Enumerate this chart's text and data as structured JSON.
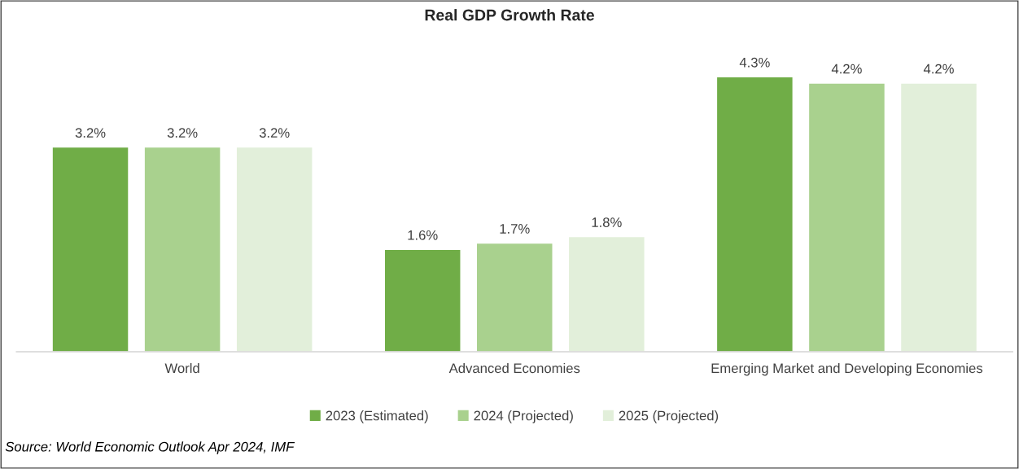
{
  "chart_data": {
    "type": "bar",
    "title": "Real GDP Growth Rate",
    "categories": [
      "World",
      "Advanced Economies",
      "Emerging Market and Developing Economies"
    ],
    "series": [
      {
        "name": "2023 (Estimated)",
        "color": "#70ad47",
        "values": [
          3.2,
          1.6,
          4.3
        ],
        "value_labels": [
          "3.2%",
          "1.6%",
          "4.3%"
        ]
      },
      {
        "name": "2024 (Projected)",
        "color": "#a9d18e",
        "values": [
          3.2,
          1.7,
          4.2
        ],
        "value_labels": [
          "3.2%",
          "1.7%",
          "4.2%"
        ]
      },
      {
        "name": "2025 (Projected)",
        "color": "#e2efda",
        "values": [
          3.2,
          1.8,
          4.2
        ],
        "value_labels": [
          "3.2%",
          "1.8%",
          "4.2%"
        ]
      }
    ],
    "legend": "bottom",
    "grid": false,
    "annotations": [
      "Source: World Economic Outlook Apr 2024, IMF"
    ]
  }
}
